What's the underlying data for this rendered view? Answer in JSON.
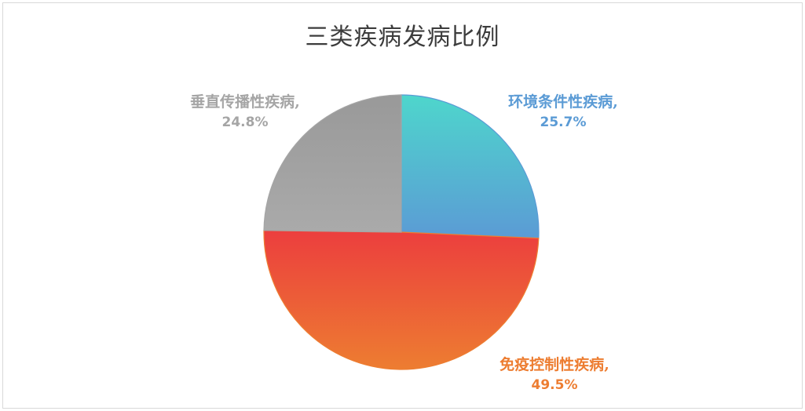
{
  "chart_data": {
    "type": "pie",
    "title": "三类疾病发病比例",
    "slices": [
      {
        "name": "环境条件性疾病",
        "value": 25.7,
        "label": "25.7%",
        "color": "#5b9bd5",
        "gradient": [
          "#4ed6cc",
          "#5b9bd5"
        ]
      },
      {
        "name": "免疫控制性疾病",
        "value": 49.5,
        "label": "49.5%",
        "color": "#ed7d31",
        "gradient": [
          "#ec3e3e",
          "#ed7d31"
        ]
      },
      {
        "name": "垂直传播性疾病",
        "value": 24.8,
        "label": "24.8%",
        "color": "#a5a5a5",
        "gradient": [
          "#999999",
          "#aaaaaa"
        ]
      }
    ]
  }
}
